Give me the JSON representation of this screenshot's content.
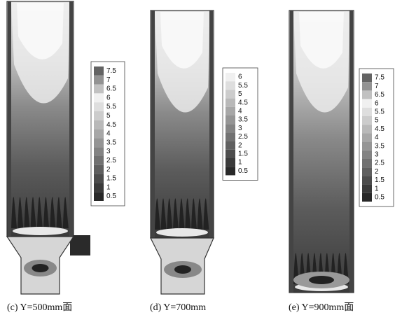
{
  "panels": [
    {
      "caption": "(c) Y=500mm面",
      "legend": [
        7.5,
        7,
        6.5,
        6,
        5.5,
        5,
        4.5,
        4,
        3.5,
        3,
        2.5,
        2,
        1.5,
        1,
        0.5
      ]
    },
    {
      "caption": "(d) Y=700mm",
      "legend": [
        6,
        5.5,
        5,
        4.5,
        4,
        3.5,
        3,
        2.5,
        2,
        1.5,
        1,
        0.5
      ]
    },
    {
      "caption": "(e) Y=900mm面",
      "legend": [
        7.5,
        7,
        6.5,
        6,
        5.5,
        5,
        4.5,
        4,
        3.5,
        3,
        2.5,
        2,
        1.5,
        1,
        0.5
      ]
    }
  ]
}
